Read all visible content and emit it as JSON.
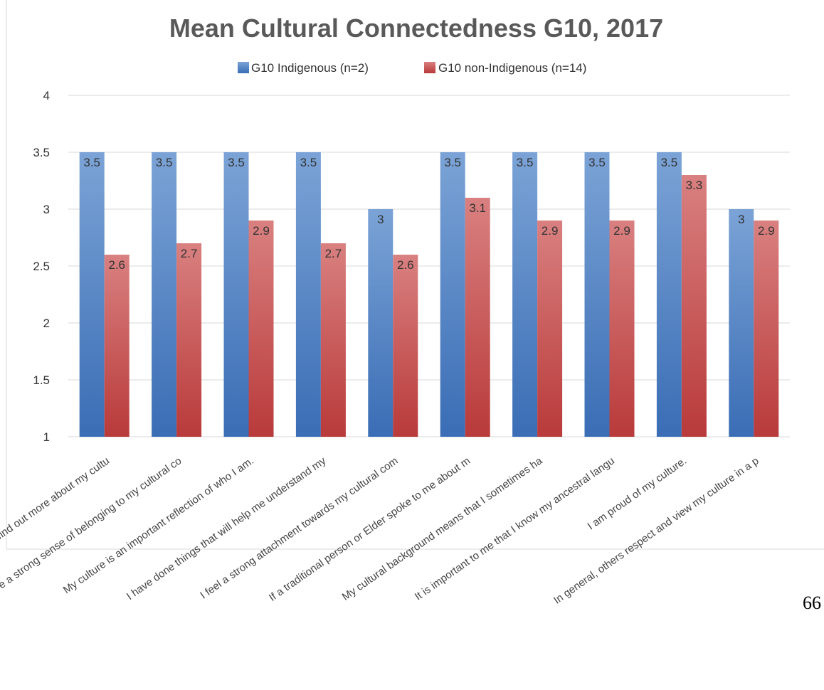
{
  "page_number": "66",
  "colors": {
    "indigenous_top": "#7ba3d6",
    "indigenous_bottom": "#3a6db5",
    "non_indigenous_top": "#d98080",
    "non_indigenous_bottom": "#b93a3a",
    "grid": "#d9d9d9",
    "title": "#595959"
  },
  "chart_data": {
    "type": "bar",
    "title": "Mean Cultural Connectedness G10, 2017",
    "xlabel": "",
    "ylabel": "",
    "ylim": [
      1,
      4
    ],
    "yticks": [
      1,
      1.5,
      2,
      2.5,
      3,
      3.5,
      4
    ],
    "ytick_labels": [
      "1",
      "1.5",
      "2",
      "2.5",
      "3",
      "3.5",
      "4"
    ],
    "grid": true,
    "legend_position": "top",
    "categories": [
      "I find out more about my cultu",
      "I have a strong sense of belonging to my cultural co",
      "My culture is an important reflection of who I am.",
      "I have done things that will help me understand my",
      "I feel a strong attachment towards my cultural com",
      "If a traditional person or Elder spoke to me about m",
      "My cultural background means that I sometimes ha",
      "It is important to me that I know my ancestral langu",
      "I am proud of my culture.",
      "In general, others respect and view my culture in a p"
    ],
    "series": [
      {
        "name": "G10 Indigenous (n=2)",
        "values": [
          3.5,
          3.5,
          3.5,
          3.5,
          3,
          3.5,
          3.5,
          3.5,
          3.5,
          3
        ],
        "labels": [
          "3.5",
          "3.5",
          "3.5",
          "3.5",
          "3",
          "3.5",
          "3.5",
          "3.5",
          "3.5",
          "3"
        ]
      },
      {
        "name": "G10 non-Indigenous (n=14)",
        "values": [
          2.6,
          2.7,
          2.9,
          2.7,
          2.6,
          3.1,
          2.9,
          2.9,
          3.3,
          2.9
        ],
        "labels": [
          "2.6",
          "2.7",
          "2.9",
          "2.7",
          "2.6",
          "3.1",
          "2.9",
          "2.9",
          "3.3",
          "2.9"
        ]
      }
    ]
  }
}
